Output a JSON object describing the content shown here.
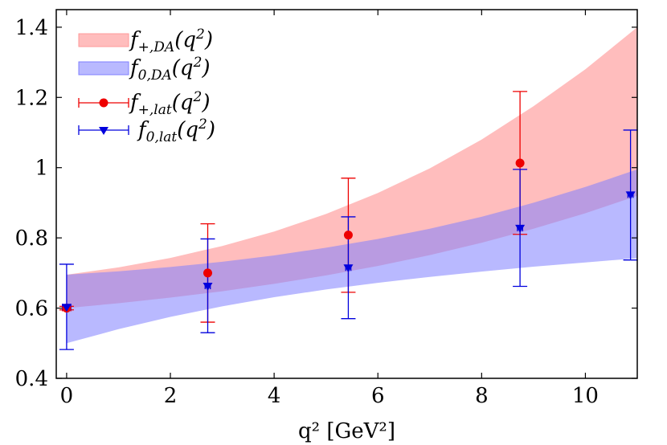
{
  "chart_data": {
    "type": "line",
    "xlabel": "q² [GeV²]",
    "xlim": [
      -0.2,
      11
    ],
    "ylim": [
      0.4,
      1.45
    ],
    "x_ticks": [
      0,
      2,
      4,
      6,
      8,
      10
    ],
    "x_tick_labels": [
      "0",
      "2",
      "4",
      "6",
      "8",
      "10"
    ],
    "y_ticks": [
      0.4,
      0.6,
      0.8,
      1.0,
      1.2,
      1.4
    ],
    "y_tick_labels": [
      "0.4",
      "0.6",
      "0.8",
      "1",
      "1.2",
      "1.4"
    ],
    "legend_position": "top-left",
    "series": [
      {
        "name": "f+,DA(q²)",
        "legend": {
          "main": "f",
          "sub": "+,DA",
          "arg": "(q",
          "sup": "2",
          "close": ")"
        },
        "kind": "band",
        "color": "#ff9999",
        "opacity": 0.65,
        "x": [
          0,
          1,
          2,
          3,
          4,
          5,
          6,
          7,
          8,
          9,
          10,
          11
        ],
        "lower": [
          0.6,
          0.614,
          0.63,
          0.648,
          0.669,
          0.693,
          0.72,
          0.751,
          0.786,
          0.826,
          0.87,
          0.92
        ],
        "upper": [
          0.695,
          0.716,
          0.743,
          0.777,
          0.818,
          0.868,
          0.928,
          0.998,
          1.08,
          1.175,
          1.28,
          1.4
        ]
      },
      {
        "name": "f0,DA(q²)",
        "legend": {
          "main": "f",
          "sub": "0,DA",
          "arg": "(q",
          "sup": "2",
          "close": ")"
        },
        "kind": "band",
        "color": "#8080ff",
        "opacity": 0.55,
        "x": [
          0,
          1,
          2,
          3,
          4,
          5,
          6,
          7,
          8,
          9,
          10,
          11
        ],
        "lower": [
          0.5,
          0.54,
          0.575,
          0.605,
          0.631,
          0.653,
          0.672,
          0.689,
          0.704,
          0.718,
          0.73,
          0.742
        ],
        "upper": [
          0.695,
          0.705,
          0.717,
          0.732,
          0.75,
          0.772,
          0.797,
          0.826,
          0.86,
          0.9,
          0.945,
          0.995
        ]
      },
      {
        "name": "f+,lat(q²)",
        "legend": {
          "main": "f",
          "sub": "+,lat",
          "arg": "(q",
          "sup": "2",
          "close": ")"
        },
        "kind": "points",
        "marker": "circle",
        "color": "#ee0000",
        "points": [
          {
            "x": 0.0,
            "y": 0.6,
            "ylo": 0.595,
            "yhi": 0.605,
            "xerr": 0.08
          },
          {
            "x": 2.72,
            "y": 0.7,
            "ylo": 0.56,
            "yhi": 0.84,
            "xerr": 0.05
          },
          {
            "x": 5.43,
            "y": 0.808,
            "ylo": 0.645,
            "yhi": 0.97,
            "xerr": 0.05
          },
          {
            "x": 8.74,
            "y": 1.013,
            "ylo": 0.81,
            "yhi": 1.217,
            "xerr": 0.05
          }
        ]
      },
      {
        "name": "f0,lat(q²)",
        "legend": {
          "main": "f",
          "sub": "0,lat",
          "arg": "(q",
          "sup": "2",
          "close": ")"
        },
        "kind": "points",
        "marker": "triangle-down",
        "color": "#0000dd",
        "points": [
          {
            "x": 0.0,
            "y": 0.603,
            "ylo": 0.482,
            "yhi": 0.725,
            "xerr": 0.08
          },
          {
            "x": 2.72,
            "y": 0.663,
            "ylo": 0.53,
            "yhi": 0.797,
            "xerr": 0.05
          },
          {
            "x": 5.43,
            "y": 0.715,
            "ylo": 0.57,
            "yhi": 0.86,
            "xerr": 0.05
          },
          {
            "x": 8.74,
            "y": 0.828,
            "ylo": 0.662,
            "yhi": 0.995,
            "xerr": 0.05
          },
          {
            "x": 10.87,
            "y": 0.923,
            "ylo": 0.737,
            "yhi": 1.107,
            "xerr": 0.05
          }
        ]
      }
    ]
  }
}
